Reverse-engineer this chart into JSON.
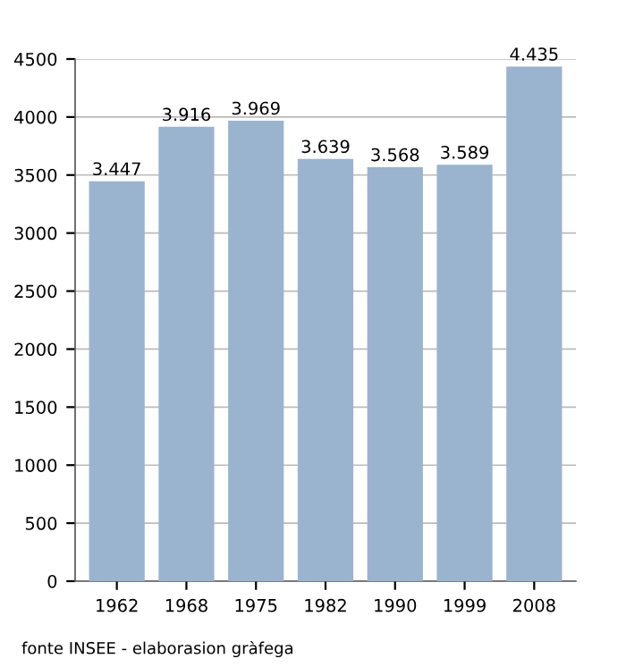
{
  "chart_data": {
    "type": "bar",
    "categories": [
      "1962",
      "1968",
      "1975",
      "1982",
      "1990",
      "1999",
      "2008"
    ],
    "values": [
      3447,
      3916,
      3969,
      3639,
      3568,
      3589,
      4435
    ],
    "value_labels": [
      "3.447",
      "3.916",
      "3.969",
      "3.639",
      "3.568",
      "3.589",
      "4.435"
    ],
    "color": "#9ab3cf",
    "ylim": [
      0,
      4500
    ],
    "yticks": [
      0,
      500,
      1000,
      1500,
      2000,
      2500,
      3000,
      3500,
      4000,
      4500
    ],
    "grid": "y",
    "annotations": [
      "fonte INSEE - elaborasion gràfega"
    ]
  }
}
